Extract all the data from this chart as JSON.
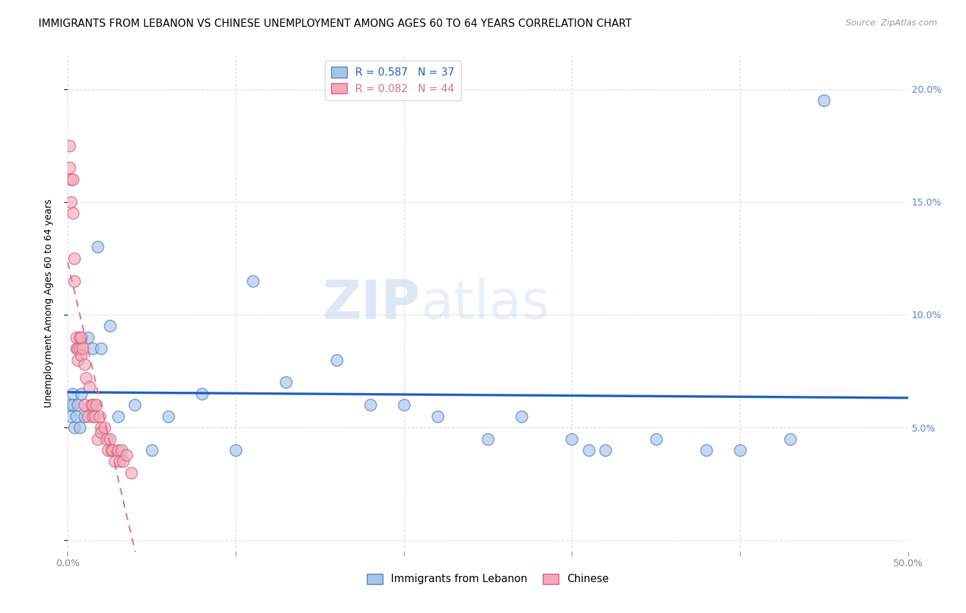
{
  "title": "IMMIGRANTS FROM LEBANON VS CHINESE UNEMPLOYMENT AMONG AGES 60 TO 64 YEARS CORRELATION CHART",
  "source": "Source: ZipAtlas.com",
  "ylabel": "Unemployment Among Ages 60 to 64 years",
  "watermark_zip": "ZIP",
  "watermark_atlas": "atlas",
  "legend_entries": [
    {
      "label": "Immigrants from Lebanon",
      "color": "#a8c4e8",
      "edge": "#5580b8",
      "R": 0.587,
      "N": 37
    },
    {
      "label": "Chinese",
      "color": "#f4a8b8",
      "edge": "#d06080",
      "R": 0.082,
      "N": 44
    }
  ],
  "xlim": [
    0.0,
    0.5
  ],
  "ylim": [
    -0.005,
    0.215
  ],
  "yticks": [
    0.0,
    0.05,
    0.1,
    0.15,
    0.2
  ],
  "ytick_labels": [
    "",
    "5.0%",
    "10.0%",
    "15.0%",
    "20.0%"
  ],
  "xticks": [
    0.0,
    0.1,
    0.2,
    0.3,
    0.4,
    0.5
  ],
  "xtick_labels_bottom": [
    "0.0%",
    "",
    "",
    "",
    "",
    "50.0%"
  ],
  "lebanon_x": [
    0.001,
    0.002,
    0.003,
    0.003,
    0.004,
    0.005,
    0.006,
    0.007,
    0.008,
    0.01,
    0.012,
    0.015,
    0.018,
    0.02,
    0.025,
    0.03,
    0.04,
    0.05,
    0.06,
    0.08,
    0.1,
    0.11,
    0.13,
    0.16,
    0.18,
    0.2,
    0.22,
    0.25,
    0.27,
    0.3,
    0.31,
    0.32,
    0.35,
    0.38,
    0.4,
    0.43,
    0.45
  ],
  "lebanon_y": [
    0.06,
    0.055,
    0.065,
    0.06,
    0.05,
    0.055,
    0.06,
    0.05,
    0.065,
    0.055,
    0.09,
    0.085,
    0.13,
    0.085,
    0.095,
    0.055,
    0.06,
    0.04,
    0.055,
    0.065,
    0.04,
    0.115,
    0.07,
    0.08,
    0.06,
    0.06,
    0.055,
    0.045,
    0.055,
    0.045,
    0.04,
    0.04,
    0.045,
    0.04,
    0.04,
    0.045,
    0.195
  ],
  "chinese_x": [
    0.001,
    0.001,
    0.002,
    0.002,
    0.003,
    0.003,
    0.004,
    0.004,
    0.005,
    0.005,
    0.006,
    0.006,
    0.007,
    0.007,
    0.008,
    0.008,
    0.009,
    0.01,
    0.01,
    0.011,
    0.012,
    0.013,
    0.014,
    0.015,
    0.015,
    0.016,
    0.017,
    0.018,
    0.019,
    0.02,
    0.02,
    0.022,
    0.023,
    0.024,
    0.025,
    0.026,
    0.027,
    0.028,
    0.03,
    0.031,
    0.032,
    0.033,
    0.035,
    0.038
  ],
  "chinese_y": [
    0.175,
    0.165,
    0.16,
    0.15,
    0.16,
    0.145,
    0.125,
    0.115,
    0.09,
    0.085,
    0.085,
    0.08,
    0.09,
    0.085,
    0.09,
    0.082,
    0.085,
    0.06,
    0.078,
    0.072,
    0.055,
    0.068,
    0.06,
    0.055,
    0.06,
    0.055,
    0.06,
    0.045,
    0.055,
    0.05,
    0.048,
    0.05,
    0.045,
    0.04,
    0.045,
    0.04,
    0.04,
    0.035,
    0.04,
    0.035,
    0.04,
    0.035,
    0.038,
    0.03
  ],
  "lebanon_line_color": "#2060c0",
  "chinese_line_color": "#e07090",
  "grid_color": "#dddddd",
  "background_color": "#ffffff",
  "title_fontsize": 11,
  "axis_label_fontsize": 10,
  "tick_fontsize": 10,
  "legend_fontsize": 11,
  "tick_color": "#5588cc"
}
